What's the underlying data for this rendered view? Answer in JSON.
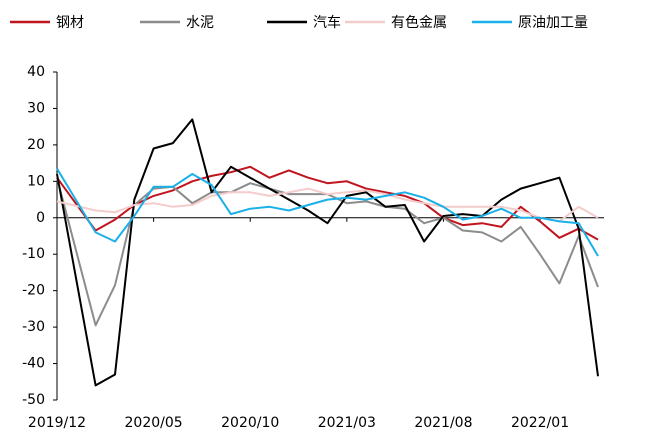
{
  "chart_data": {
    "type": "line",
    "x": [
      "2019/12",
      "2020/02",
      "2020/03",
      "2020/04",
      "2020/05",
      "2020/06",
      "2020/07",
      "2020/08",
      "2020/09",
      "2020/10",
      "2020/11",
      "2020/12",
      "2021/01",
      "2021/02",
      "2021/03",
      "2021/04",
      "2021/05",
      "2021/06",
      "2021/07",
      "2021/08",
      "2021/09",
      "2021/10",
      "2021/11",
      "2021/12",
      "2022/01",
      "2022/02",
      "2022/03",
      "2022/04"
    ],
    "xticks": [
      "2019/12",
      "2020/05",
      "2020/10",
      "2021/03",
      "2021/08",
      "2022/01"
    ],
    "ylim": [
      -50,
      40
    ],
    "yticks": [
      -50,
      -40,
      -30,
      -20,
      -10,
      0,
      10,
      20,
      30,
      40
    ],
    "legend": "top",
    "series": [
      {
        "name": "钢材",
        "color": "#c0141e",
        "values": [
          11,
          -3.5,
          -0.5,
          3.5,
          6,
          7.5,
          10,
          11.5,
          12.5,
          14,
          11,
          13,
          11,
          9.5,
          10,
          8,
          7,
          6,
          4,
          0,
          -2,
          -1.5,
          -2.5,
          3,
          -1,
          -5.5,
          -3,
          -6
        ]
      },
      {
        "name": "水泥",
        "color": "#8c8c8c",
        "values": [
          11,
          -29.5,
          -18.5,
          3.5,
          8,
          8.5,
          4,
          7,
          7,
          9.5,
          8,
          6.5,
          6.5,
          6.5,
          4,
          4.5,
          3,
          2.5,
          -1.5,
          0,
          -3.5,
          -4,
          -6.5,
          -2.5,
          -10,
          -18,
          -5,
          -19
        ]
      },
      {
        "name": "汽车",
        "color": "#000000",
        "values": [
          12,
          -46,
          -43,
          5,
          19,
          20.5,
          27,
          7,
          14,
          11,
          8,
          5,
          2,
          -1.5,
          6,
          7,
          3,
          3.5,
          -6.5,
          0.5,
          1,
          0.5,
          5,
          8,
          9.5,
          11,
          -3,
          -43.5
        ]
      },
      {
        "name": "有色金属",
        "color": "#f4cccc",
        "values": [
          4.5,
          2,
          1.5,
          3.5,
          4,
          3,
          3.5,
          6,
          7,
          7,
          6,
          7,
          8,
          6.5,
          7,
          7.5,
          6.5,
          5,
          4,
          3,
          3,
          3,
          3,
          2,
          0,
          -1,
          3,
          0
        ]
      },
      {
        "name": "原油加工量",
        "color": "#1ab0e8",
        "values": [
          13.5,
          -4,
          -6.5,
          0.5,
          8.5,
          8.5,
          12,
          9,
          1,
          2.5,
          3,
          2,
          3.5,
          5,
          5.5,
          5,
          6,
          7,
          5.5,
          3,
          -0.5,
          0.5,
          2.5,
          0,
          0,
          -1,
          -1.5,
          -10.5
        ]
      }
    ]
  }
}
